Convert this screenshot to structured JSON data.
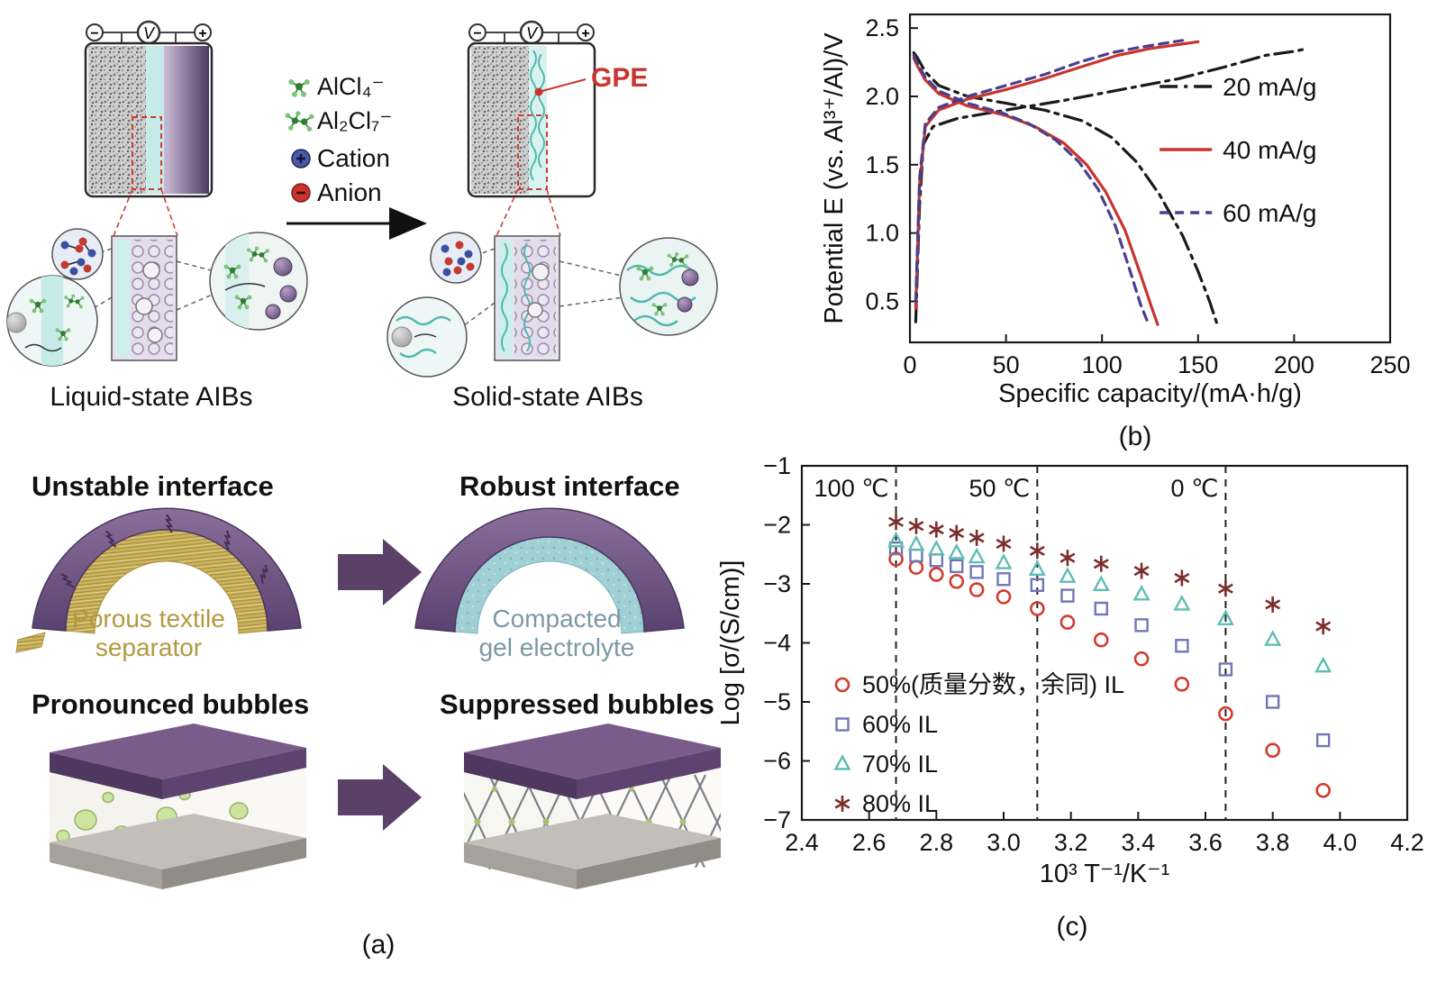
{
  "panel_labels": {
    "a": "(a)",
    "b": "(b)",
    "c": "(c)"
  },
  "schematic": {
    "voltmeter_label": "V",
    "minus_sign": "−",
    "plus_sign": "+",
    "legend": [
      {
        "label": "AlCl₄⁻"
      },
      {
        "label": "Al₂Cl₇⁻"
      },
      {
        "label": "Cation"
      },
      {
        "label": "Anion"
      }
    ],
    "gpe_label": "GPE",
    "liquid_caption": "Liquid-state AIBs",
    "solid_caption": "Solid-state AIBs"
  },
  "interface_panel": {
    "unstable_title": "Unstable interface",
    "robust_title": "Robust interface",
    "porous_line1": "Porous textile",
    "porous_line2": "separator",
    "compacted_line1": "Compacted",
    "compacted_line2": "gel electrolyte",
    "pronounced_title": "Pronounced bubbles",
    "suppressed_title": "Suppressed bubbles"
  },
  "chart_data": [
    {
      "id": "chart-b",
      "type": "line",
      "title": "",
      "xlabel": "Specific capacity/(mA·h/g)",
      "ylabel": "Potential E (vs. Al³⁺/Al)/V",
      "xlim": [
        0,
        250
      ],
      "ylim": [
        0.2,
        2.6
      ],
      "xticks": [
        0,
        50,
        100,
        150,
        200,
        250
      ],
      "yticks": [
        0.5,
        1.0,
        1.5,
        2.0,
        2.5
      ],
      "grid": false,
      "legend_position": "inside-right",
      "series": [
        {
          "name": "20 mA/g",
          "color": "#1a1a1a",
          "dash": "dashdot",
          "segments": [
            [
              [
                3,
                0.35
              ],
              [
                5,
                1.2
              ],
              [
                7,
                1.65
              ],
              [
                12,
                1.78
              ],
              [
                25,
                1.84
              ],
              [
                50,
                1.9
              ],
              [
                80,
                1.97
              ],
              [
                110,
                2.05
              ],
              [
                140,
                2.13
              ],
              [
                165,
                2.22
              ],
              [
                185,
                2.3
              ],
              [
                200,
                2.33
              ],
              [
                207,
                2.35
              ]
            ],
            [
              [
                2,
                2.32
              ],
              [
                4,
                2.28
              ],
              [
                8,
                2.18
              ],
              [
                15,
                2.08
              ],
              [
                30,
                2.0
              ],
              [
                50,
                1.95
              ],
              [
                70,
                1.9
              ],
              [
                90,
                1.82
              ],
              [
                105,
                1.7
              ],
              [
                118,
                1.52
              ],
              [
                130,
                1.28
              ],
              [
                142,
                0.98
              ],
              [
                150,
                0.72
              ],
              [
                156,
                0.5
              ],
              [
                160,
                0.33
              ]
            ]
          ]
        },
        {
          "name": "40 mA/g",
          "color": "#c8352f",
          "dash": "solid",
          "segments": [
            [
              [
                3,
                0.45
              ],
              [
                5,
                1.35
              ],
              [
                8,
                1.78
              ],
              [
                15,
                1.9
              ],
              [
                30,
                1.98
              ],
              [
                50,
                2.05
              ],
              [
                70,
                2.13
              ],
              [
                90,
                2.22
              ],
              [
                108,
                2.3
              ],
              [
                125,
                2.35
              ],
              [
                140,
                2.38
              ],
              [
                150,
                2.4
              ]
            ],
            [
              [
                2,
                2.28
              ],
              [
                4,
                2.22
              ],
              [
                8,
                2.12
              ],
              [
                15,
                2.02
              ],
              [
                30,
                1.93
              ],
              [
                50,
                1.86
              ],
              [
                65,
                1.78
              ],
              [
                80,
                1.66
              ],
              [
                92,
                1.5
              ],
              [
                102,
                1.3
              ],
              [
                112,
                1.02
              ],
              [
                120,
                0.7
              ],
              [
                126,
                0.45
              ],
              [
                129,
                0.33
              ]
            ]
          ]
        },
        {
          "name": "60 mA/g",
          "color": "#4a3f8f",
          "dash": "dashed",
          "segments": [
            [
              [
                3,
                0.5
              ],
              [
                5,
                1.4
              ],
              [
                8,
                1.8
              ],
              [
                15,
                1.92
              ],
              [
                30,
                2.0
              ],
              [
                50,
                2.08
              ],
              [
                70,
                2.16
              ],
              [
                88,
                2.25
              ],
              [
                105,
                2.32
              ],
              [
                120,
                2.36
              ],
              [
                133,
                2.39
              ],
              [
                142,
                2.41
              ]
            ],
            [
              [
                2,
                2.3
              ],
              [
                4,
                2.24
              ],
              [
                8,
                2.14
              ],
              [
                15,
                2.04
              ],
              [
                30,
                1.95
              ],
              [
                48,
                1.88
              ],
              [
                62,
                1.8
              ],
              [
                76,
                1.68
              ],
              [
                88,
                1.52
              ],
              [
                98,
                1.32
              ],
              [
                107,
                1.05
              ],
              [
                114,
                0.75
              ],
              [
                120,
                0.48
              ],
              [
                124,
                0.34
              ]
            ]
          ]
        }
      ]
    },
    {
      "id": "chart-c",
      "type": "scatter",
      "title": "",
      "xlabel": "10³ T⁻¹/K⁻¹",
      "ylabel": "Log [σ/(S/cm)]",
      "xlim": [
        2.4,
        4.2
      ],
      "ylim": [
        -7,
        -1
      ],
      "xticks": [
        2.4,
        2.6,
        2.8,
        3.0,
        3.2,
        3.4,
        3.6,
        3.8,
        4.0,
        4.2
      ],
      "yticks": [
        -1,
        -2,
        -3,
        -4,
        -5,
        -6,
        -7
      ],
      "grid": false,
      "vlines": [
        {
          "x": 2.68,
          "label": "100 ℃"
        },
        {
          "x": 3.1,
          "label": "50 ℃"
        },
        {
          "x": 3.66,
          "label": "0 ℃"
        }
      ],
      "x": [
        2.68,
        2.74,
        2.8,
        2.86,
        2.92,
        3.0,
        3.1,
        3.19,
        3.29,
        3.41,
        3.53,
        3.66,
        3.8,
        3.95
      ],
      "legend_position": "inside-bottom-left",
      "series": [
        {
          "name": "50%(质量分数，余同) IL",
          "marker": "circle",
          "color": "#d23b2e",
          "values": [
            -2.58,
            -2.72,
            -2.84,
            -2.96,
            -3.1,
            -3.22,
            -3.42,
            -3.65,
            -3.95,
            -4.27,
            -4.7,
            -5.2,
            -5.82,
            -6.5
          ]
        },
        {
          "name": "60% IL",
          "marker": "square",
          "color": "#7077b5",
          "values": [
            -2.4,
            -2.52,
            -2.6,
            -2.7,
            -2.8,
            -2.92,
            -3.02,
            -3.2,
            -3.42,
            -3.7,
            -4.05,
            -4.45,
            -5.0,
            -5.65
          ]
        },
        {
          "name": "70% IL",
          "marker": "triangle",
          "color": "#5fbdb5",
          "values": [
            -2.28,
            -2.34,
            -2.42,
            -2.48,
            -2.55,
            -2.65,
            -2.76,
            -2.88,
            -3.02,
            -3.18,
            -3.35,
            -3.6,
            -3.95,
            -4.4
          ]
        },
        {
          "name": "80% IL",
          "marker": "asterisk",
          "color": "#7c2d2d",
          "values": [
            -1.95,
            -2.02,
            -2.08,
            -2.14,
            -2.22,
            -2.32,
            -2.44,
            -2.56,
            -2.66,
            -2.78,
            -2.9,
            -3.08,
            -3.35,
            -3.72
          ]
        }
      ]
    }
  ]
}
